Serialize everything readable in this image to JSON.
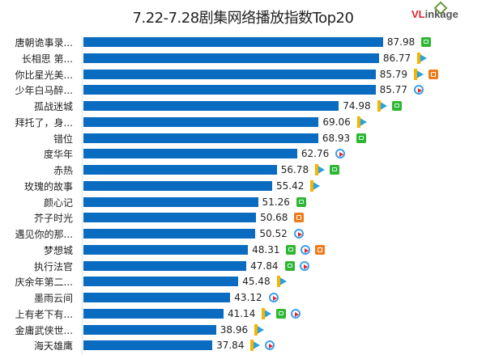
{
  "chart_data": {
    "type": "bar",
    "orientation": "horizontal",
    "title": "7.22-7.28剧集网络播放指数Top20",
    "brand": "VLinkage",
    "xlim": [
      0,
      90
    ],
    "bar_color": "#0a6cc0",
    "categories": [
      "唐朝诡事录...",
      "长相思 第...",
      "你比星光美...",
      "少年白马醉...",
      "孤战迷城",
      "拜托了，身...",
      "错位",
      "度华年",
      "赤热",
      "玫瑰的故事",
      "颜心记",
      "芥子时光",
      "遇见你的那...",
      "梦想城",
      "执行法官",
      "庆余年第二...",
      "墨雨云间",
      "上有老下有...",
      "金庸武侠世...",
      "海天雄鹰"
    ],
    "values": [
      87.98,
      86.77,
      85.79,
      85.77,
      74.98,
      69.06,
      68.93,
      62.76,
      56.78,
      55.42,
      51.26,
      50.68,
      50.52,
      48.31,
      47.84,
      45.48,
      43.12,
      41.14,
      38.96,
      37.84
    ],
    "value_labels": [
      "87.98",
      "86.77",
      "85.79",
      "85.77",
      "74.98",
      "69.06",
      "68.93",
      "62.76",
      "56.78",
      "55.42",
      "51.26",
      "50.68",
      "50.52",
      "48.31",
      "47.84",
      "45.48",
      "43.12",
      "41.14",
      "38.96",
      "37.84"
    ],
    "platforms": [
      [
        "iqiyi"
      ],
      [
        "tencent"
      ],
      [
        "tencent",
        "mango"
      ],
      [
        "youku"
      ],
      [
        "tencent",
        "iqiyi"
      ],
      [
        "tencent"
      ],
      [
        "iqiyi"
      ],
      [
        "youku"
      ],
      [
        "tencent",
        "iqiyi"
      ],
      [
        "tencent"
      ],
      [
        "iqiyi"
      ],
      [
        "mango"
      ],
      [
        "youku"
      ],
      [
        "iqiyi",
        "youku",
        "mango"
      ],
      [
        "iqiyi",
        "youku"
      ],
      [
        "tencent"
      ],
      [
        "youku"
      ],
      [
        "tencent",
        "iqiyi",
        "youku"
      ],
      [
        "tencent"
      ],
      [
        "tencent",
        "youku"
      ]
    ]
  }
}
